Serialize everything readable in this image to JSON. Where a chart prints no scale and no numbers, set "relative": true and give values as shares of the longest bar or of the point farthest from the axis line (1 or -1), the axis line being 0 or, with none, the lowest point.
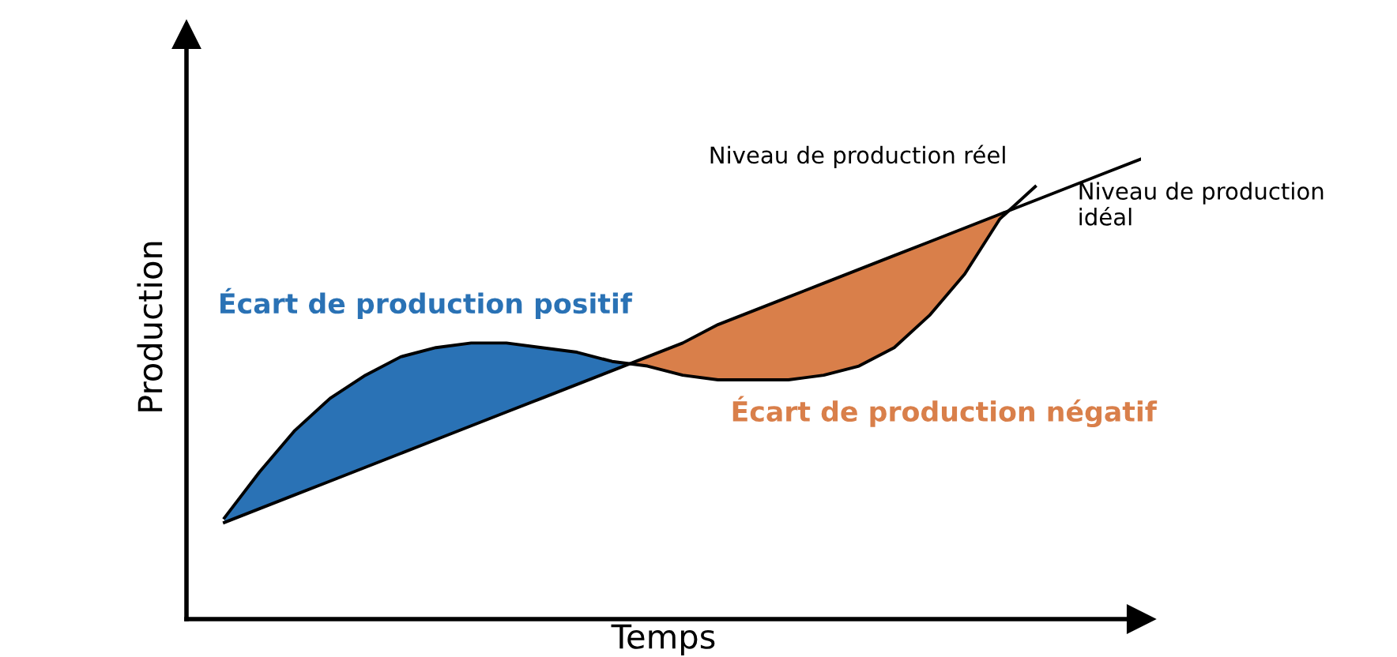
{
  "chart_data": {
    "type": "line",
    "relative": true,
    "xlabel": "Temps",
    "ylabel": "Production",
    "categories": [
      null,
      null,
      null,
      null,
      null,
      null,
      null,
      null,
      null,
      null,
      null,
      null,
      null,
      null,
      null,
      null,
      null,
      null,
      null,
      null,
      null,
      null,
      null,
      null,
      null,
      null,
      null
    ],
    "series": [
      {
        "name": "Niveau de production réel",
        "color": "#000000",
        "values": [
          0.22,
          0.32,
          0.41,
          0.48,
          0.53,
          0.57,
          0.59,
          0.6,
          0.6,
          0.59,
          0.58,
          0.56,
          0.55,
          0.53,
          0.52,
          0.52,
          0.52,
          0.53,
          0.55,
          0.59,
          0.66,
          0.75,
          0.87,
          0.94,
          null,
          null,
          null
        ]
      },
      {
        "name": "Niveau de production idéal",
        "color": "#000000",
        "values": [
          0.21,
          0.24,
          0.27,
          0.3,
          0.33,
          0.36,
          0.39,
          0.42,
          0.45,
          0.48,
          0.51,
          0.54,
          0.57,
          0.6,
          0.64,
          0.67,
          0.7,
          0.73,
          0.76,
          0.79,
          0.82,
          0.85,
          0.88,
          0.91,
          0.94,
          0.97,
          1.0
        ]
      }
    ],
    "annotations": [
      "Écart de production positif",
      "Écart de production négatif"
    ],
    "legend": "top right",
    "marker": "none",
    "line_style": "solid"
  }
}
